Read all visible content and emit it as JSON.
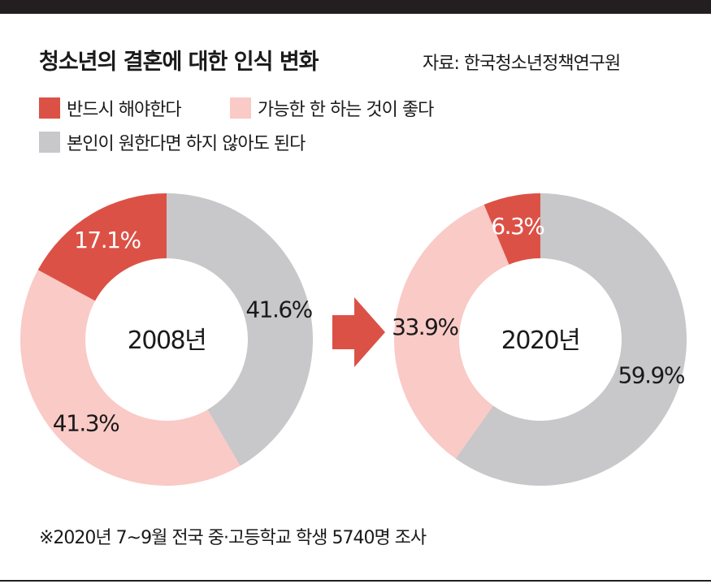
{
  "title": "청소년의 결혼에 대한 인식 변화",
  "source": "자료: 한국청소년정책연구원",
  "footnote": "※2020년 7~9월 전국 중·고등학교 학생 5740명 조사",
  "colors": {
    "must": "#dc5146",
    "better": "#f9cac6",
    "optional": "#c8c7c9",
    "arrow": "#dc5146"
  },
  "legend": [
    {
      "label": "반드시 해야한다",
      "color_key": "must"
    },
    {
      "label": "가능한 한 하는 것이 좋다",
      "color_key": "better"
    },
    {
      "label": "본인이 원한다면 하지 않아도 된다",
      "color_key": "optional"
    }
  ],
  "chart_data": [
    {
      "type": "pie",
      "variant": "donut",
      "center_label": "2008년",
      "categories": [
        "반드시 해야한다",
        "가능한 한 하는 것이 좋다",
        "본인이 원한다면 하지 않아도 된다"
      ],
      "values": [
        17.1,
        41.3,
        41.6
      ],
      "labels": [
        "17.1%",
        "41.3%",
        "41.6%"
      ]
    },
    {
      "type": "pie",
      "variant": "donut",
      "center_label": "2020년",
      "categories": [
        "반드시 해야한다",
        "가능한 한 하는 것이 좋다",
        "본인이 원한다면 하지 않아도 된다"
      ],
      "values": [
        6.3,
        33.9,
        59.9
      ],
      "labels": [
        "6.3%",
        "33.9%",
        "59.9%"
      ]
    }
  ]
}
